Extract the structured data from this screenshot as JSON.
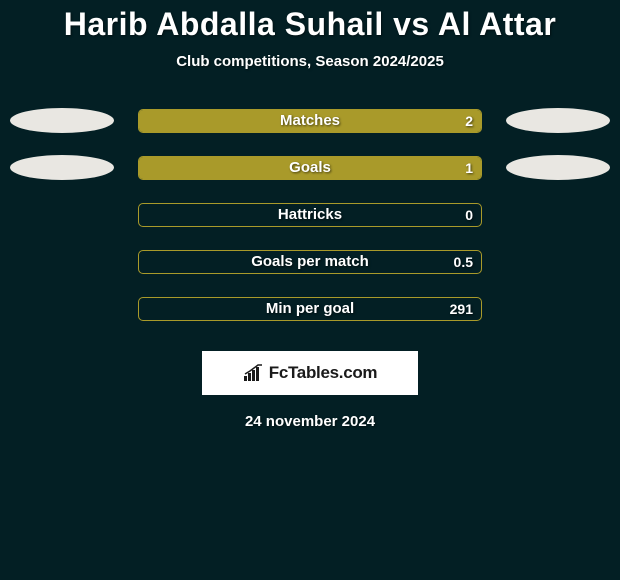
{
  "header": {
    "title": "Harib Abdalla Suhail vs Al Attar",
    "subtitle": "Club competitions, Season 2024/2025"
  },
  "style": {
    "background": "#031f24",
    "bar_color": "#a99a2a",
    "bar_border_color": "#a99a2a",
    "ellipse_left_color": "#e9e7e2",
    "ellipse_right_color": "#e9e7e2",
    "title_fontsize": 32,
    "subtitle_fontsize": 15,
    "label_fontsize": 15,
    "value_fontsize": 14,
    "text_color": "#ffffff"
  },
  "stats": [
    {
      "label": "Matches",
      "value": "2",
      "fill_pct": 100,
      "left_ellipse": true,
      "right_ellipse": true
    },
    {
      "label": "Goals",
      "value": "1",
      "fill_pct": 100,
      "left_ellipse": true,
      "right_ellipse": true
    },
    {
      "label": "Hattricks",
      "value": "0",
      "fill_pct": 0,
      "left_ellipse": false,
      "right_ellipse": false
    },
    {
      "label": "Goals per match",
      "value": "0.5",
      "fill_pct": 0,
      "left_ellipse": false,
      "right_ellipse": false
    },
    {
      "label": "Min per goal",
      "value": "291",
      "fill_pct": 0,
      "left_ellipse": false,
      "right_ellipse": false
    }
  ],
  "footer": {
    "logo_text": "FcTables.com",
    "date": "24 november 2024"
  }
}
